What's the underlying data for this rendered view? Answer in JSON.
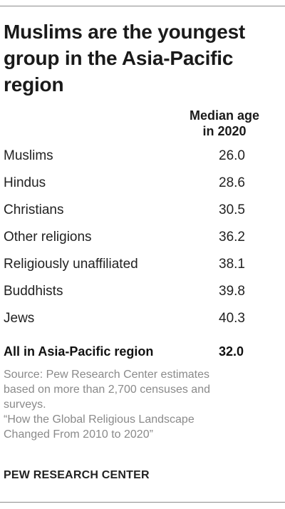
{
  "chart_data": {
    "type": "table",
    "title": "Muslims are the youngest group in the Asia-Pacific region",
    "column_header": [
      "Median age",
      "in 2020"
    ],
    "rows": [
      {
        "label": "Muslims",
        "value": "26.0"
      },
      {
        "label": "Hindus",
        "value": "28.6"
      },
      {
        "label": "Christians",
        "value": "30.5"
      },
      {
        "label": "Other religions",
        "value": "36.2"
      },
      {
        "label": "Religiously unaffiliated",
        "value": "38.1"
      },
      {
        "label": "Buddhists",
        "value": "39.8"
      },
      {
        "label": "Jews",
        "value": "40.3"
      }
    ],
    "total": {
      "label": "All in Asia-Pacific region",
      "value": "32.0"
    }
  },
  "source": {
    "lines": [
      "Source: Pew Research Center estimates",
      "based on more than 2,700 censuses and",
      "surveys.",
      "“How the Global Religious Landscape",
      "Changed From 2010 to 2020”"
    ]
  },
  "brand": "PEW RESEARCH CENTER"
}
